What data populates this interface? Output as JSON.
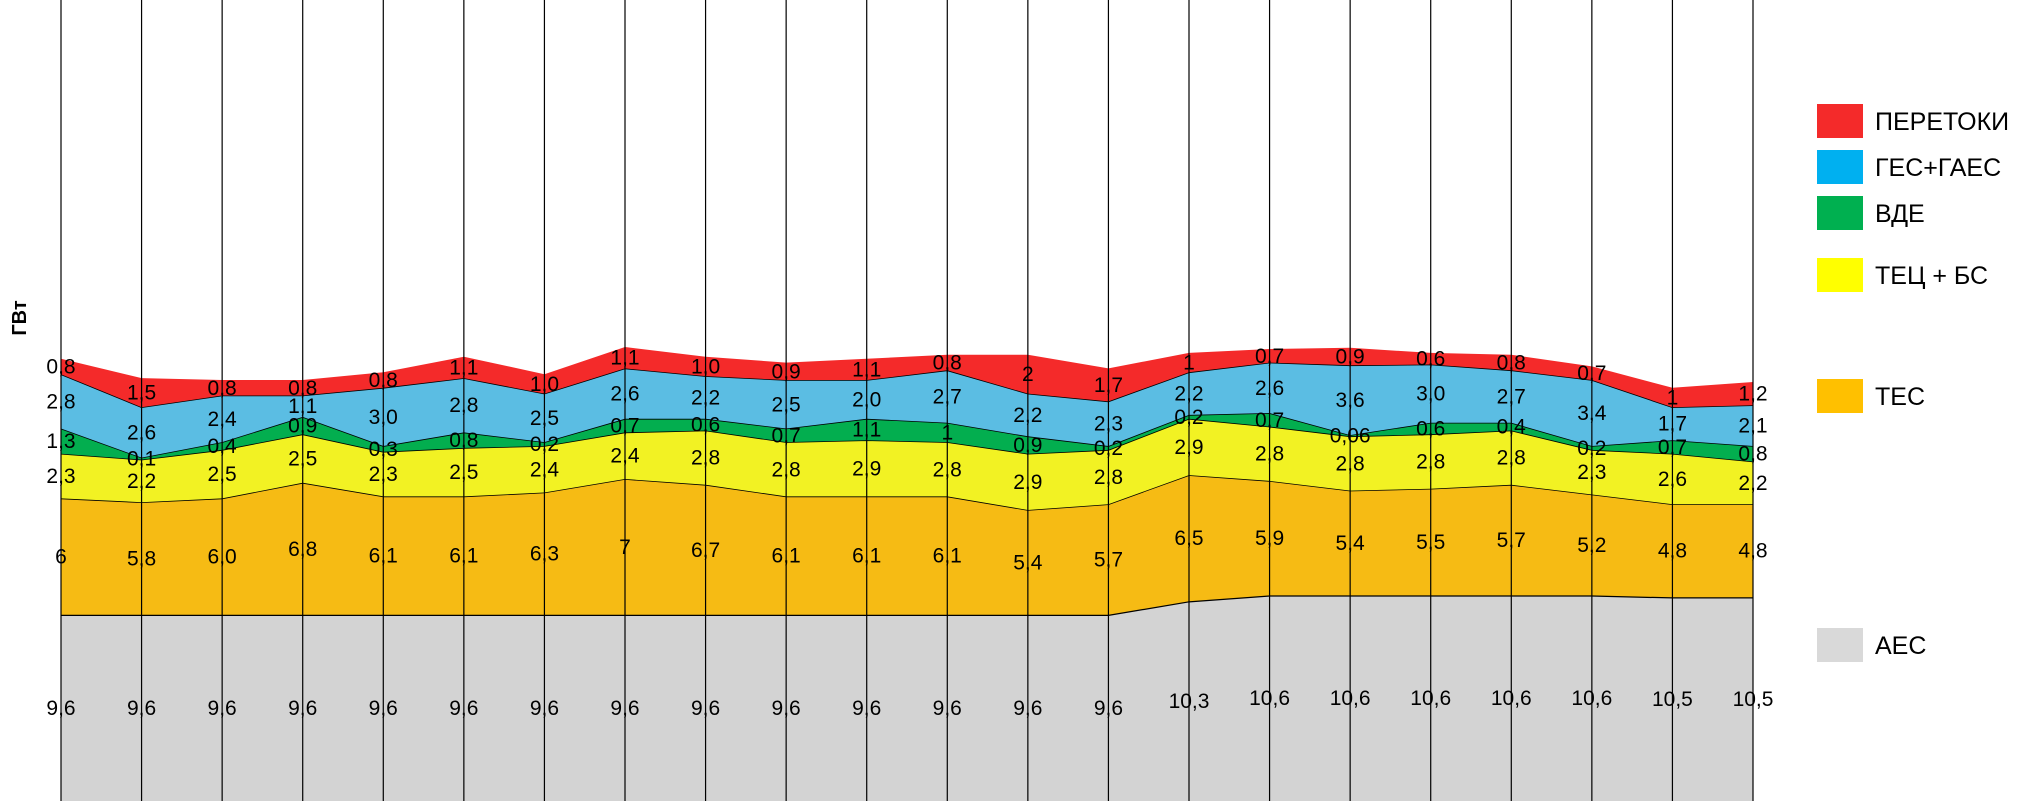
{
  "chart_data": {
    "type": "area",
    "stacked": true,
    "ylabel": "ГВт",
    "x_count": 22,
    "grid": "vertical",
    "legend_position": "right",
    "series": [
      {
        "name": "АЕС",
        "color": "#d3d3d3",
        "values": [
          9.6,
          9.6,
          9.6,
          9.6,
          9.6,
          9.6,
          9.6,
          9.6,
          9.6,
          9.6,
          9.6,
          9.6,
          9.6,
          9.6,
          10.3,
          10.6,
          10.6,
          10.6,
          10.6,
          10.6,
          10.5,
          10.5
        ],
        "labels": [
          "9,6",
          "9,6",
          "9,6",
          "9,6",
          "9,6",
          "9,6",
          "9,6",
          "9,6",
          "9,6",
          "9,6",
          "9,6",
          "9,6",
          "9,6",
          "9,6",
          "10,3",
          "10,6",
          "10,6",
          "10,6",
          "10,6",
          "10,6",
          "10,5",
          "10,5"
        ]
      },
      {
        "name": "ТЕС",
        "color": "#f6bb14",
        "values": [
          6,
          5.8,
          6.0,
          6.8,
          6.1,
          6.1,
          6.3,
          7,
          6.7,
          6.1,
          6.1,
          6.1,
          5.4,
          5.7,
          6.5,
          5.9,
          5.4,
          5.5,
          5.7,
          5.2,
          4.8,
          4.8
        ],
        "labels": [
          "6",
          "5,8",
          "6,0",
          "6,8",
          "6,1",
          "6,1",
          "6,3",
          "7",
          "6,7",
          "6,1",
          "6,1",
          "6,1",
          "5,4",
          "5,7",
          "6,5",
          "5,9",
          "5,4",
          "5,5",
          "5,7",
          "5,2",
          "4,8",
          "4,8"
        ]
      },
      {
        "name": "ТЕЦ + БС",
        "color": "#f2f223",
        "values": [
          2.3,
          2.2,
          2.5,
          2.5,
          2.3,
          2.5,
          2.4,
          2.4,
          2.8,
          2.8,
          2.9,
          2.8,
          2.9,
          2.8,
          2.9,
          2.8,
          2.8,
          2.8,
          2.8,
          2.3,
          2.6,
          2.2
        ],
        "labels": [
          "2,3",
          "2,2",
          "2,5",
          "2,5",
          "2,3",
          "2,5",
          "2,4",
          "2,4",
          "2,8",
          "2,8",
          "2,9",
          "2,8",
          "2,9",
          "2,8",
          "2,9",
          "2,8",
          "2,8",
          "2,8",
          "2,8",
          "2,3",
          "2,6",
          "2,2"
        ]
      },
      {
        "name": "ВДЕ",
        "color": "#03ae4f",
        "values": [
          1.3,
          0.1,
          0.4,
          0.9,
          0.3,
          0.8,
          0.2,
          0.7,
          0.6,
          0.7,
          1.1,
          1,
          0.9,
          0.2,
          0.2,
          0.7,
          0.06,
          0.6,
          0.4,
          0.2,
          0.7,
          0.8
        ],
        "labels": [
          "1,3",
          "0,1",
          "0,4",
          "0,9",
          "0,3",
          "0,8",
          "0,2",
          "0,7",
          "0,6",
          "0,7",
          "1,1",
          "1",
          "0,9",
          "0,2",
          "0,2",
          "0,7",
          "0,06",
          "0,6",
          "0,4",
          "0,2",
          "0,7",
          "0,8"
        ]
      },
      {
        "name": "ГЕС+ГАЕС",
        "color": "#5bbde3",
        "values": [
          2.8,
          2.6,
          2.4,
          1.1,
          3.0,
          2.8,
          2.5,
          2.6,
          2.2,
          2.5,
          2.0,
          2.7,
          2.2,
          2.3,
          2.2,
          2.6,
          3.6,
          3.0,
          2.7,
          3.4,
          1.7,
          2.1
        ],
        "labels": [
          "2,8",
          "2,6",
          "2,4",
          "1,1",
          "3,0",
          "2,8",
          "2,5",
          "2,6",
          "2,2",
          "2,5",
          "2,0",
          "2,7",
          "2,2",
          "2,3",
          "2,2",
          "2,6",
          "3,6",
          "3,0",
          "2,7",
          "3,4",
          "1,7",
          "2,1"
        ]
      },
      {
        "name": "ПЕРЕТОКИ",
        "color": "#f42a2a",
        "values": [
          0.8,
          1.5,
          0.8,
          0.8,
          0.8,
          1.1,
          1.0,
          1.1,
          1.0,
          0.9,
          1.1,
          0.8,
          2,
          1.7,
          1,
          0.7,
          0.9,
          0.6,
          0.8,
          0.7,
          1,
          1.2
        ],
        "labels": [
          "0,8",
          "1,5",
          "0,8",
          "0,8",
          "0,8",
          "1,1",
          "1,0",
          "1,1",
          "1,0",
          "0,9",
          "1,1",
          "0,8",
          "2",
          "1,7",
          "1",
          "0,7",
          "0,9",
          "0,6",
          "0,8",
          "0,7",
          "1",
          "1,2"
        ]
      }
    ],
    "legend": [
      {
        "name": "ПЕРЕТОКИ",
        "color": "#f42a2a"
      },
      {
        "name": "ГЕС+ГАЕС",
        "color": "#00b0f0"
      },
      {
        "name": "ВДЕ",
        "color": "#00b050"
      },
      {
        "name": "ТЕЦ + БС",
        "color": "#ffff00"
      },
      {
        "name": "ТЕС",
        "color": "#ffc000"
      },
      {
        "name": "АЕС",
        "color": "#d9d9d9"
      }
    ]
  }
}
